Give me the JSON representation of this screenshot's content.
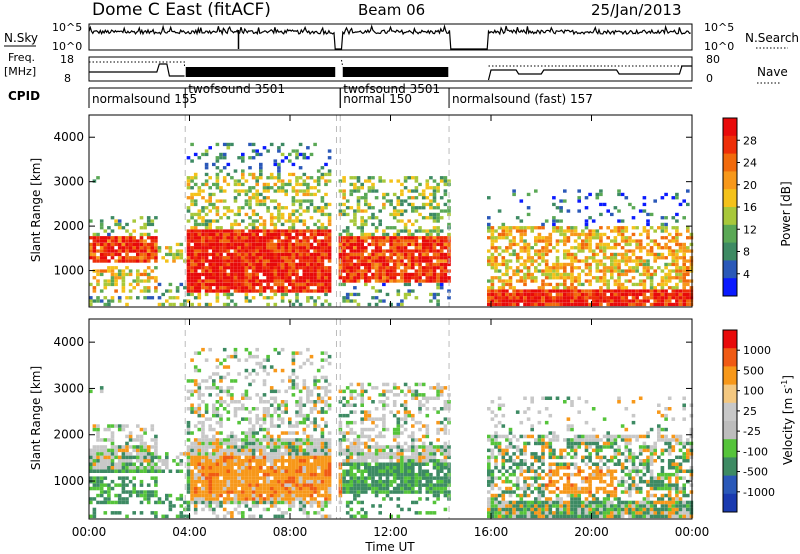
{
  "header": {
    "station": "Dome C East (fitACF)",
    "beam": "Beam 06",
    "date": "25/Jan/2013"
  },
  "strips": {
    "nsky_label": "N.Sky",
    "nsky_ticks": [
      "10^5",
      "10^0"
    ],
    "nsearch_label": "N.Search",
    "freq_label_1": "Freq.",
    "freq_label_2": "[MHz]",
    "freq_ticks": [
      "18",
      "8"
    ],
    "nave_label": "Nave",
    "nave_ticks": [
      "80",
      "0"
    ],
    "cpid_label": "CPID"
  },
  "modes": [
    {
      "label": "normalsound 155",
      "start_hour": 0.0
    },
    {
      "label": "twofsound 3501",
      "start_hour": 3.83
    },
    {
      "label": "normal 150",
      "start_hour": 10.0
    },
    {
      "label": "twofsound 3501",
      "start_hour": 10.0
    },
    {
      "label": "normalsound (fast) 157",
      "start_hour": 14.33
    }
  ],
  "colors": {
    "power": [
      "#0a1aff",
      "#2a58b8",
      "#3d8a63",
      "#5aa855",
      "#a8c83a",
      "#f4c21a",
      "#f7981a",
      "#f16a0c",
      "#ee2e08",
      "#e80a0a"
    ],
    "velocity": [
      "#e80a0a",
      "#f05a14",
      "#f7981a",
      "#f4c880",
      "#c8c8c8",
      "#bdbdbd",
      "#55c43a",
      "#3d8a63",
      "#2a58b8",
      "#1a3ab0"
    ]
  },
  "chart_data": [
    {
      "type": "heatmap",
      "name": "Backscatter power",
      "xlabel": "Time UT",
      "ylabel": "Slant Range [km]",
      "xlim_hours": [
        0,
        24
      ],
      "ylim_km": [
        180,
        4500
      ],
      "y_ticks": [
        "4000",
        "3000",
        "2000",
        "1000"
      ],
      "colorbar_label": "Power [dB]",
      "colorbar_ticks": [
        "28",
        "24",
        "20",
        "16",
        "12",
        "8",
        "4"
      ],
      "colorbar_range": [
        0,
        32
      ],
      "data_gaps_hours": [
        [
          9.9,
          10.0
        ],
        [
          14.4,
          15.9
        ]
      ]
    },
    {
      "type": "heatmap",
      "name": "Doppler velocity",
      "xlabel": "Time UT",
      "ylabel": "Slant Range [km]",
      "xlim_hours": [
        0,
        24
      ],
      "ylim_km": [
        180,
        4500
      ],
      "y_ticks": [
        "4000",
        "3000",
        "2000",
        "1000"
      ],
      "colorbar_label": "Velocity [m s",
      "colorbar_label_sup": "-1",
      "colorbar_label_end": "]",
      "colorbar_ticks": [
        "1000",
        "500",
        "100",
        "25",
        "-25",
        "-100",
        "-500",
        "-1000"
      ],
      "data_gaps_hours": [
        [
          9.9,
          10.0
        ],
        [
          14.4,
          15.9
        ]
      ]
    }
  ],
  "x_ticks": [
    "00:00",
    "04:00",
    "08:00",
    "12:00",
    "16:00",
    "20:00",
    "00:00"
  ],
  "xlabel": "Time UT"
}
